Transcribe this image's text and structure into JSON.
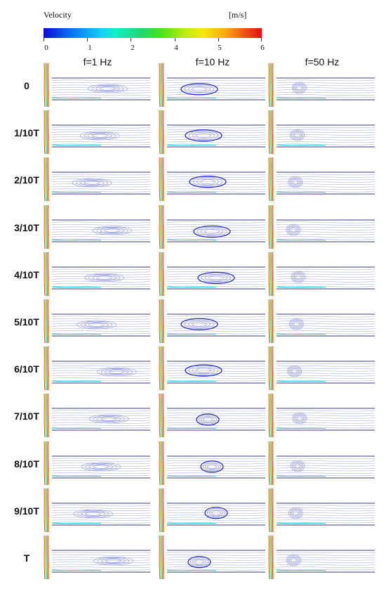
{
  "legend": {
    "title": "Velocity",
    "unit": "[m/s]",
    "ticks": [
      "0",
      "1",
      "2",
      "4",
      "5",
      "6"
    ],
    "gradient": [
      "#0a0ad8",
      "#12d4f2",
      "#1dd870",
      "#f6e90e",
      "#f8a412",
      "#e01212"
    ]
  },
  "columns": [
    {
      "id": "f1",
      "label": "f=1 Hz"
    },
    {
      "id": "f10",
      "label": "f=10 Hz"
    },
    {
      "id": "f50",
      "label": "f=50 Hz"
    }
  ],
  "rows": [
    "0",
    "1/10T",
    "2/10T",
    "3/10T",
    "4/10T",
    "5/10T",
    "6/10T",
    "7/10T",
    "8/10T",
    "9/10T",
    "T"
  ],
  "colors": {
    "streamline": "#8a8fd6",
    "streamline_dark": "#1d22b8",
    "jet_low": "#16c9e6",
    "jet_mid": "#d8e018",
    "jet_high": "#e03a12",
    "wall": "#3a3a7a"
  }
}
